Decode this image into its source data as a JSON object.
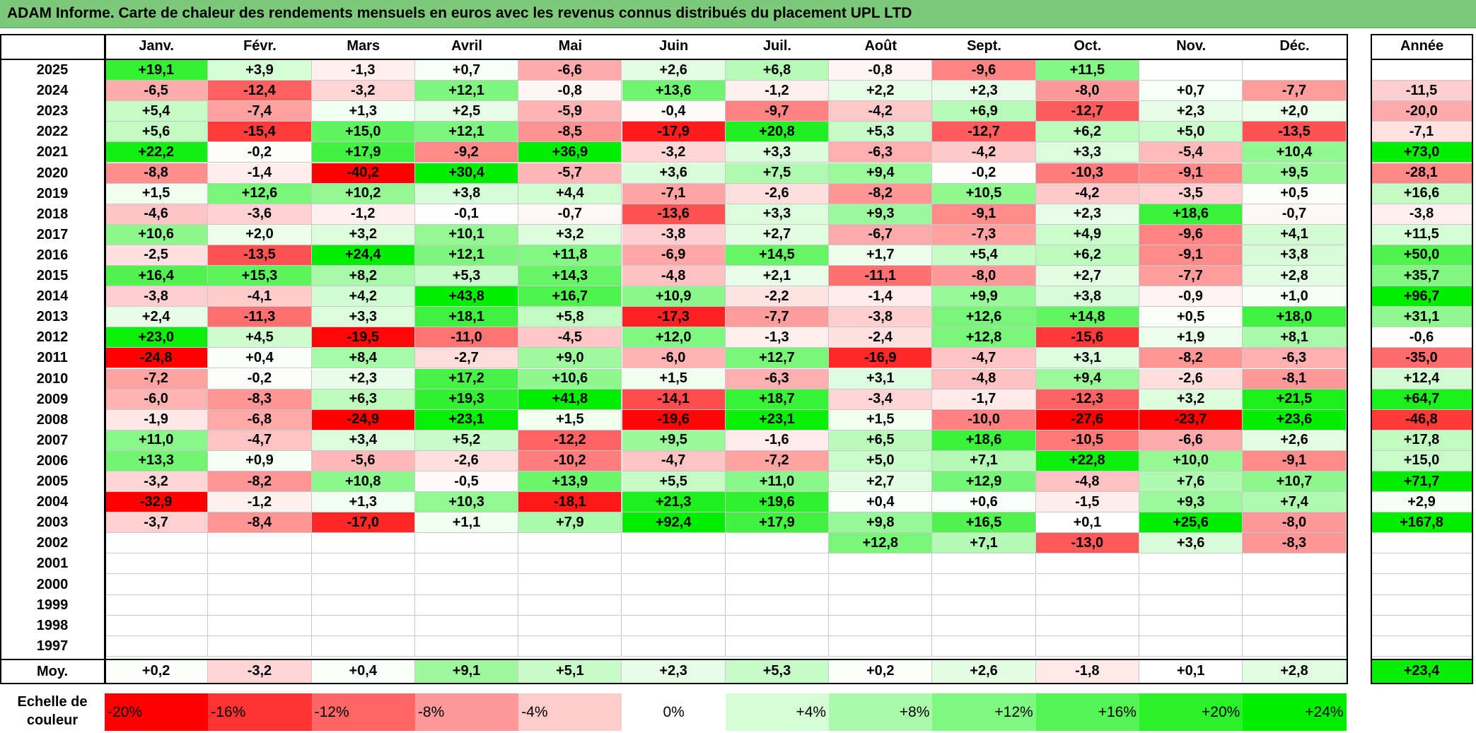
{
  "title": "ADAM Informe. Carte de chaleur des rendements mensuels en euros avec les revenus connus distribués du placement UPL LTD",
  "chart_data": {
    "type": "heatmap",
    "title": "ADAM Informe. Carte de chaleur des rendements mensuels en euros avec les revenus connus distribués du placement UPL LTD",
    "months": [
      "Janv.",
      "Févr.",
      "Mars",
      "Avril",
      "Mai",
      "Juin",
      "Juil.",
      "Août",
      "Sept.",
      "Oct.",
      "Nov.",
      "Déc."
    ],
    "annual_label": "Année",
    "years": [
      "2025",
      "2024",
      "2023",
      "2022",
      "2021",
      "2020",
      "2019",
      "2018",
      "2017",
      "2016",
      "2015",
      "2014",
      "2013",
      "2012",
      "2011",
      "2010",
      "2009",
      "2008",
      "2007",
      "2006",
      "2005",
      "2004",
      "2003",
      "2002",
      "2001",
      "2000",
      "1999",
      "1998",
      "1997"
    ],
    "rows": [
      [
        "+19,1",
        "+3,9",
        "-1,3",
        "+0,7",
        "-6,6",
        "+2,6",
        "+6,8",
        "-0,8",
        "-9,6",
        "+11,5",
        "",
        ""
      ],
      [
        "-6,5",
        "-12,4",
        "-3,2",
        "+12,1",
        "-0,8",
        "+13,6",
        "-1,2",
        "+2,2",
        "+2,3",
        "-8,0",
        "+0,7",
        "-7,7"
      ],
      [
        "+5,4",
        "-7,4",
        "+1,3",
        "+2,5",
        "-5,9",
        "-0,4",
        "-9,7",
        "-4,2",
        "+6,9",
        "-12,7",
        "+2,3",
        "+2,0"
      ],
      [
        "+5,6",
        "-15,4",
        "+15,0",
        "+12,1",
        "-8,5",
        "-17,9",
        "+20,8",
        "+5,3",
        "-12,7",
        "+6,2",
        "+5,0",
        "-13,5"
      ],
      [
        "+22,2",
        "-0,2",
        "+17,9",
        "-9,2",
        "+36,9",
        "-3,2",
        "+3,3",
        "-6,3",
        "-4,2",
        "+3,3",
        "-5,4",
        "+10,4"
      ],
      [
        "-8,8",
        "-1,4",
        "-40,2",
        "+30,4",
        "-5,7",
        "+3,6",
        "+7,5",
        "+9,4",
        "-0,2",
        "-10,3",
        "-9,1",
        "+9,5"
      ],
      [
        "+1,5",
        "+12,6",
        "+10,2",
        "+3,8",
        "+4,4",
        "-7,1",
        "-2,6",
        "-8,2",
        "+10,5",
        "-4,2",
        "-3,5",
        "+0,5"
      ],
      [
        "-4,6",
        "-3,6",
        "-1,2",
        "-0,1",
        "-0,7",
        "-13,6",
        "+3,3",
        "+9,3",
        "-9,1",
        "+2,3",
        "+18,6",
        "-0,7"
      ],
      [
        "+10,6",
        "+2,0",
        "+3,2",
        "+10,1",
        "+3,2",
        "-3,8",
        "+2,7",
        "-6,7",
        "-7,3",
        "+4,9",
        "-9,6",
        "+4,1"
      ],
      [
        "-2,5",
        "-13,5",
        "+24,4",
        "+12,1",
        "+11,8",
        "-6,9",
        "+14,5",
        "+1,7",
        "+5,4",
        "+6,2",
        "-9,1",
        "+3,8"
      ],
      [
        "+16,4",
        "+15,3",
        "+8,2",
        "+5,3",
        "+14,3",
        "-4,8",
        "+2,1",
        "-11,1",
        "-8,0",
        "+2,7",
        "-7,7",
        "+2,8"
      ],
      [
        "-3,8",
        "-4,1",
        "+4,2",
        "+43,8",
        "+16,7",
        "+10,9",
        "-2,2",
        "-1,4",
        "+9,9",
        "+3,8",
        "-0,9",
        "+1,0"
      ],
      [
        "+2,4",
        "-11,3",
        "+3,3",
        "+18,1",
        "+5,8",
        "-17,3",
        "-7,7",
        "-3,8",
        "+12,6",
        "+14,8",
        "+0,5",
        "+18,0"
      ],
      [
        "+23,0",
        "+4,5",
        "-19,5",
        "-11,0",
        "-4,5",
        "+12,0",
        "-1,3",
        "-2,4",
        "+12,8",
        "-15,6",
        "+1,9",
        "+8,1"
      ],
      [
        "-24,8",
        "+0,4",
        "+8,4",
        "-2,7",
        "+9,0",
        "-6,0",
        "+12,7",
        "-16,9",
        "-4,7",
        "+3,1",
        "-8,2",
        "-6,3"
      ],
      [
        "-7,2",
        "-0,2",
        "+2,3",
        "+17,2",
        "+10,6",
        "+1,5",
        "-6,3",
        "+3,1",
        "-4,8",
        "+9,4",
        "-2,6",
        "-8,1"
      ],
      [
        "-6,0",
        "-8,3",
        "+6,3",
        "+19,3",
        "+41,8",
        "-14,1",
        "+18,7",
        "-3,4",
        "-1,7",
        "-12,3",
        "+3,2",
        "+21,5"
      ],
      [
        "-1,9",
        "-6,8",
        "-24,9",
        "+23,1",
        "+1,5",
        "-19,6",
        "+23,1",
        "+1,5",
        "-10,0",
        "-27,6",
        "-23,7",
        "+23,6"
      ],
      [
        "+11,0",
        "-4,7",
        "+3,4",
        "+5,2",
        "-12,2",
        "+9,5",
        "-1,6",
        "+6,5",
        "+18,6",
        "-10,5",
        "-6,6",
        "+2,6"
      ],
      [
        "+13,3",
        "+0,9",
        "-5,6",
        "-2,6",
        "-10,2",
        "-4,7",
        "-7,2",
        "+5,0",
        "+7,1",
        "+22,8",
        "+10,0",
        "-9,1"
      ],
      [
        "-3,2",
        "-8,2",
        "+10,8",
        "-0,5",
        "+13,9",
        "+5,5",
        "+11,0",
        "+2,7",
        "+12,9",
        "-4,8",
        "+7,6",
        "+10,7"
      ],
      [
        "-32,9",
        "-1,2",
        "+1,3",
        "+10,3",
        "-18,1",
        "+21,3",
        "+19,6",
        "+0,4",
        "+0,6",
        "-1,5",
        "+9,3",
        "+7,4"
      ],
      [
        "-3,7",
        "-8,4",
        "-17,0",
        "+1,1",
        "+7,9",
        "+92,4",
        "+17,9",
        "+9,8",
        "+16,5",
        "+0,1",
        "+25,6",
        "-8,0"
      ],
      [
        "",
        "",
        "",
        "",
        "",
        "",
        "",
        "+12,8",
        "+7,1",
        "-13,0",
        "+3,6",
        "-8,3"
      ],
      [
        "",
        "",
        "",
        "",
        "",
        "",
        "",
        "",
        "",
        "",
        "",
        ""
      ],
      [
        "",
        "",
        "",
        "",
        "",
        "",
        "",
        "",
        "",
        "",
        "",
        ""
      ],
      [
        "",
        "",
        "",
        "",
        "",
        "",
        "",
        "",
        "",
        "",
        "",
        ""
      ],
      [
        "",
        "",
        "",
        "",
        "",
        "",
        "",
        "",
        "",
        "",
        "",
        ""
      ],
      [
        "",
        "",
        "",
        "",
        "",
        "",
        "",
        "",
        "",
        "",
        "",
        ""
      ]
    ],
    "annual": [
      "",
      "-11,5",
      "-20,0",
      "-7,1",
      "+73,0",
      "-28,1",
      "+16,6",
      "-3,8",
      "+11,5",
      "+50,0",
      "+35,7",
      "+96,7",
      "+31,1",
      "-0,6",
      "-35,0",
      "+12,4",
      "+64,7",
      "-46,8",
      "+17,8",
      "+15,0",
      "+71,7",
      "+2,9",
      "+167,8",
      "",
      "",
      "",
      "",
      "",
      ""
    ],
    "avg_label": "Moy.",
    "averages": [
      "+0,2",
      "-3,2",
      "+0,4",
      "+9,1",
      "+5,1",
      "+2,3",
      "+5,3",
      "+0,2",
      "+2,6",
      "-1,8",
      "+0,1",
      "+2,8"
    ],
    "avg_annual": "+23,4",
    "scale_label": "Echelle de couleur",
    "scale_items": [
      "-20%",
      "-16%",
      "-12%",
      "-8%",
      "-4%",
      "0%",
      "+4%",
      "+8%",
      "+12%",
      "+16%",
      "+20%",
      "+24%"
    ],
    "colors": {
      "negative_max": "#ff0000",
      "neutral": "#ffffff",
      "positive_max": "#00ee00",
      "title_bar": "#7dc97a"
    }
  }
}
